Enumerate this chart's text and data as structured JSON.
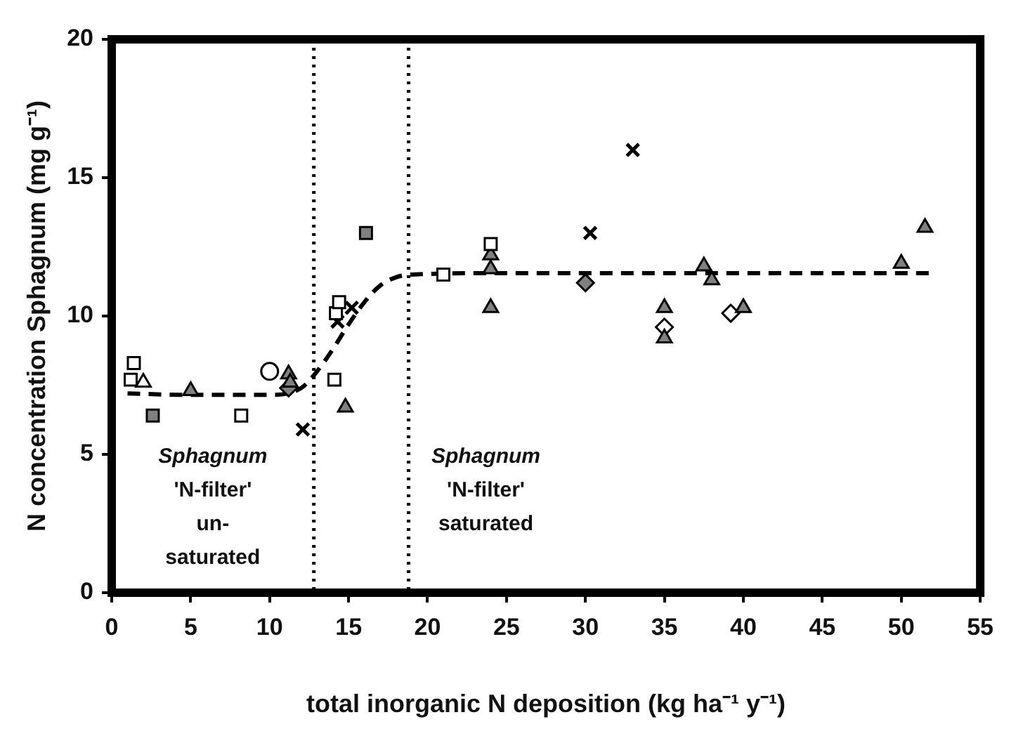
{
  "chart_data": {
    "type": "scatter",
    "xlabel": "total inorganic N deposition (kg ha⁻¹ y⁻¹)",
    "ylabel": "N concentration Sphagnum (mg g⁻¹)",
    "xlim": [
      0,
      55
    ],
    "xticks": [
      0,
      5,
      10,
      15,
      20,
      25,
      30,
      35,
      40,
      45,
      50,
      55
    ],
    "ylim": [
      0,
      20
    ],
    "yticks": [
      0,
      5,
      10,
      15,
      20
    ],
    "grid": false,
    "legend": false,
    "series": [
      {
        "marker": "square",
        "color": "#ffffff",
        "x": [
          1.2,
          1.4,
          8.2,
          14.1,
          14.2,
          14.4,
          21,
          24
        ],
        "values": [
          7.7,
          8.3,
          6.4,
          7.7,
          10.1,
          10.5,
          11.5,
          12.6
        ]
      },
      {
        "marker": "square",
        "color": "#808080",
        "x": [
          2.6,
          16.1
        ],
        "values": [
          6.4,
          13.0
        ]
      },
      {
        "marker": "triangle",
        "color": "#ffffff",
        "x": [
          2
        ],
        "values": [
          7.6
        ]
      },
      {
        "marker": "triangle",
        "color": "#808080",
        "x": [
          5,
          11.2,
          11.3,
          14.8,
          24,
          24,
          24,
          35,
          35,
          37.5,
          38,
          40,
          50,
          51.5
        ],
        "values": [
          7.3,
          7.9,
          7.6,
          6.7,
          12.2,
          11.7,
          10.3,
          10.3,
          9.2,
          11.8,
          11.3,
          10.3,
          11.9,
          13.2
        ]
      },
      {
        "marker": "circle",
        "color": "#ffffff",
        "x": [
          10
        ],
        "values": [
          8.0
        ]
      },
      {
        "marker": "cross",
        "color": "#000000",
        "x": [
          12.1,
          14.3,
          15.2,
          30.3,
          33
        ],
        "values": [
          5.9,
          9.8,
          10.3,
          13.0,
          16.0
        ]
      },
      {
        "marker": "diamond",
        "color": "#808080",
        "x": [
          11.2,
          30
        ],
        "values": [
          7.4,
          11.2
        ]
      },
      {
        "marker": "diamond",
        "color": "#ffffff",
        "x": [
          35,
          39.2
        ],
        "values": [
          9.6,
          10.1
        ]
      },
      {
        "type": "line",
        "marker": "none",
        "line_style": "dashed",
        "color": "#000000",
        "x": [
          1,
          5,
          10,
          12,
          13,
          14,
          15,
          16,
          17,
          18,
          19,
          25,
          52
        ],
        "values": [
          7.2,
          7.15,
          7.15,
          7.4,
          8.0,
          8.8,
          9.7,
          10.5,
          11.1,
          11.4,
          11.5,
          11.55,
          11.55
        ]
      }
    ],
    "ref_lines": [
      {
        "axis": "x",
        "value": 12.8,
        "line_style": "dotted",
        "color": "#000000"
      },
      {
        "axis": "x",
        "value": 18.8,
        "line_style": "dotted",
        "color": "#000000"
      }
    ],
    "annotations": [
      "Sphagnum\n'N-filter'\nun-\nsaturated",
      "Sphagnum\n'N-filter'\nsaturated"
    ]
  }
}
